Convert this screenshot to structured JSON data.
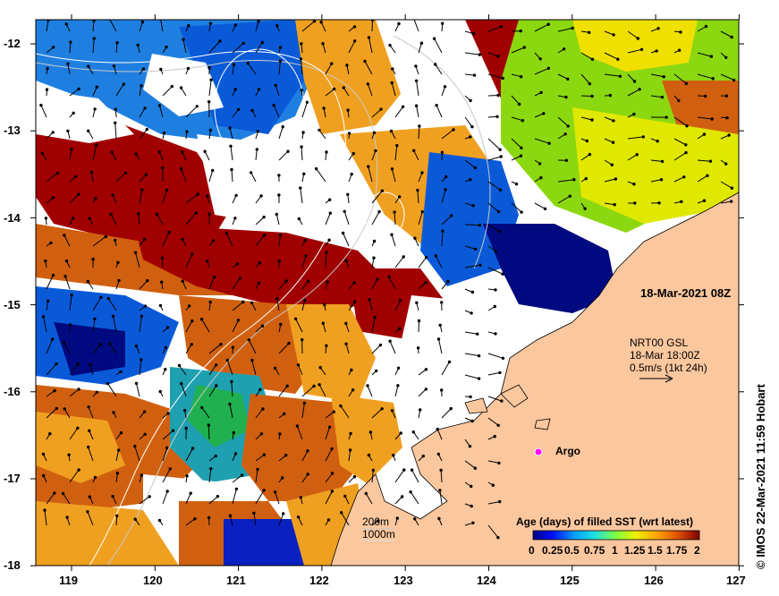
{
  "map": {
    "timestamp": "18-Mar-2021 08Z",
    "current_product": {
      "line1": "NRT00 GSL",
      "line2": "18-Mar 18:00Z",
      "line3": "0.5m/s (1kt 24h)"
    },
    "argo_label": "Argo",
    "isobaths": [
      "200m",
      "1000m"
    ],
    "credit": "© IMOS 22-Mar-2021 11:59 Hobart",
    "lat_ticks": [
      "-12",
      "-13",
      "-14",
      "-15",
      "-16",
      "-17",
      "-18"
    ],
    "lon_ticks": [
      "119",
      "120",
      "121",
      "122",
      "123",
      "124",
      "125",
      "126",
      "127"
    ],
    "colorbar": {
      "title": "Age (days) of filled SST (wrt latest)",
      "tick_labels": [
        "0",
        "0.25",
        "0.5",
        "0.75",
        "1",
        "1.25",
        "1.5",
        "1.75",
        "2"
      ],
      "range": [
        0,
        2
      ]
    },
    "colors": {
      "land": "#fbc79e",
      "no_data": "#ffffff",
      "argo": "#ff00ff"
    }
  }
}
